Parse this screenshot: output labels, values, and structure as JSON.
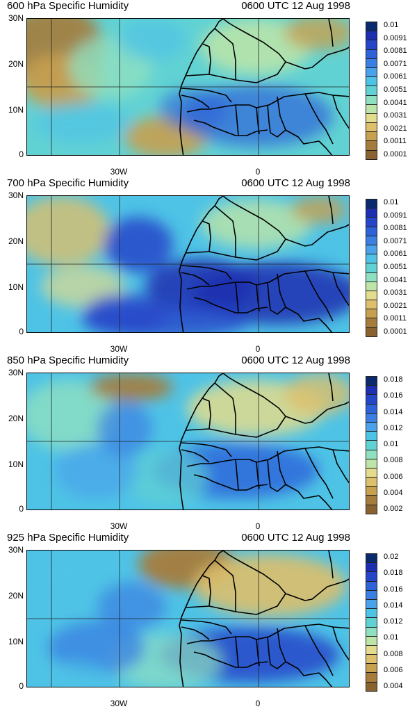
{
  "panels": [
    {
      "title": "600 hPa Specific Humidity",
      "time": "0600 UTC 12 Aug 1998",
      "y_labels": [
        "30N",
        "20N",
        "10N",
        "0"
      ],
      "x_labels": [
        "30W",
        "0"
      ],
      "cbar_labels": [
        "0.01",
        "0.0091",
        "0.0081",
        "0.0071",
        "0.0061",
        "0.0051",
        "0.0041",
        "0.0031",
        "0.0021",
        "0.0011",
        "0.0001"
      ],
      "cbar_colors": [
        "#0b2a6e",
        "#1d2fb0",
        "#2546c9",
        "#2d62d9",
        "#3a7fe1",
        "#4aa2ea",
        "#4ec3e6",
        "#61d2d3",
        "#8fe0c0",
        "#bde5a8",
        "#e3dc8c",
        "#ddbf6c",
        "#c7a050",
        "#a67c3c",
        "#8a6230"
      ]
    },
    {
      "title": "700 hPa Specific Humidity",
      "time": "0600 UTC 12 Aug 1998",
      "y_labels": [
        "30N",
        "20N",
        "10N",
        "0"
      ],
      "x_labels": [
        "30W",
        "0"
      ],
      "cbar_labels": [
        "0.01",
        "0.0091",
        "0.0081",
        "0.0071",
        "0.0061",
        "0.0051",
        "0.0041",
        "0.0031",
        "0.0021",
        "0.0011",
        "0.0001"
      ],
      "cbar_colors": [
        "#0b2a6e",
        "#1d2fb0",
        "#2546c9",
        "#2d62d9",
        "#3a7fe1",
        "#4aa2ea",
        "#4ec3e6",
        "#61d2d3",
        "#8fe0c0",
        "#bde5a8",
        "#e3dc8c",
        "#ddbf6c",
        "#c7a050",
        "#a67c3c",
        "#8a6230"
      ]
    },
    {
      "title": "850 hPa Specific Humidity",
      "time": "0600 UTC 12 Aug 1998",
      "y_labels": [
        "30N",
        "20N",
        "10N",
        "0"
      ],
      "x_labels": [
        "30W",
        "0"
      ],
      "cbar_labels": [
        "0.018",
        "0.016",
        "0.014",
        "0.012",
        "0.01",
        "0.008",
        "0.006",
        "0.004",
        "0.002"
      ],
      "cbar_colors": [
        "#0b2a6e",
        "#1d2fb0",
        "#2546c9",
        "#2d62d9",
        "#3a7fe1",
        "#4aa2ea",
        "#4ec3e6",
        "#61d2d3",
        "#8fe0c0",
        "#bde5a8",
        "#e3dc8c",
        "#ddbf6c",
        "#c7a050",
        "#a67c3c",
        "#8a6230"
      ]
    },
    {
      "title": "925 hPa Specific Humidity",
      "time": "0600 UTC 12 Aug 1998",
      "y_labels": [
        "30N",
        "20N",
        "10N",
        "0"
      ],
      "x_labels": [
        "30W",
        "0"
      ],
      "cbar_labels": [
        "0.02",
        "0.018",
        "0.016",
        "0.014",
        "0.012",
        "0.01",
        "0.008",
        "0.006",
        "0.004"
      ],
      "cbar_colors": [
        "#0b2a6e",
        "#1d2fb0",
        "#2546c9",
        "#2d62d9",
        "#3a7fe1",
        "#4aa2ea",
        "#4ec3e6",
        "#61d2d3",
        "#8fe0c0",
        "#bde5a8",
        "#e3dc8c",
        "#ddbf6c",
        "#c7a050",
        "#a67c3c",
        "#8a6230"
      ]
    }
  ]
}
